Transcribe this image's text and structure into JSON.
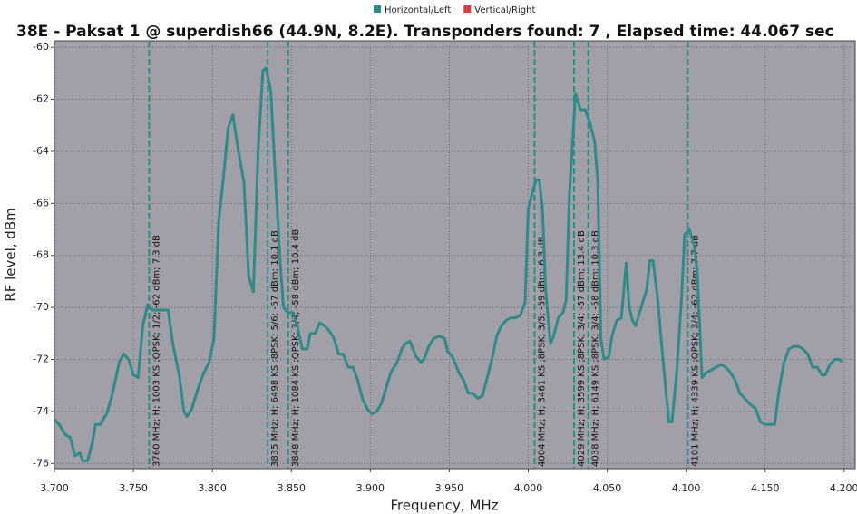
{
  "chart_data": {
    "type": "line",
    "title": "38E - Paksat 1 @ superdish66 (44.9N, 8.2E). Transponders found: 7 , Elapsed time: 44.067 sec",
    "x_label": "Frequency, MHz",
    "y_label": "RF level, dBm",
    "xlim": [
      3700,
      4207
    ],
    "ylim": [
      -76.2,
      -59.75
    ],
    "xticks": [
      {
        "value": 3700,
        "label": "3.700"
      },
      {
        "value": 3750,
        "label": "3.750"
      },
      {
        "value": 3800,
        "label": "3.800"
      },
      {
        "value": 3850,
        "label": "3.850"
      },
      {
        "value": 3900,
        "label": "3.900"
      },
      {
        "value": 3950,
        "label": "3.950"
      },
      {
        "value": 4000,
        "label": "4.000"
      },
      {
        "value": 4050,
        "label": "4.050"
      },
      {
        "value": 4100,
        "label": "4.100"
      },
      {
        "value": 4150,
        "label": "4.150"
      },
      {
        "value": 4200,
        "label": "4.200"
      }
    ],
    "yticks": [
      -60,
      -62,
      -64,
      -66,
      -68,
      -70,
      -72,
      -74,
      -76
    ],
    "grid": true,
    "legend": "top",
    "series": [
      {
        "name": "Horizontal/Left",
        "color": "#2e8b87",
        "x": [
          3700,
          3703,
          3707,
          3710,
          3713,
          3716,
          3718,
          3721,
          3724,
          3726,
          3729,
          3733,
          3736,
          3739,
          3741,
          3744,
          3747,
          3750,
          3753,
          3756,
          3759,
          3762,
          3766,
          3769,
          3772,
          3775,
          3779,
          3782,
          3784,
          3787,
          3791,
          3794,
          3798,
          3801,
          3804,
          3807,
          3810,
          3813,
          3816,
          3820,
          3823,
          3826,
          3829,
          3832,
          3834,
          3837,
          3840,
          3843,
          3845,
          3848,
          3851,
          3854,
          3857,
          3860,
          3862,
          3865,
          3868,
          3871,
          3874,
          3877,
          3880,
          3883,
          3886,
          3889,
          3892,
          3895,
          3898,
          3901,
          3904,
          3907,
          3910,
          3913,
          3917,
          3920,
          3922,
          3925,
          3929,
          3932,
          3934,
          3937,
          3940,
          3944,
          3947,
          3949,
          3952,
          3956,
          3959,
          3962,
          3965,
          3968,
          3971,
          3974,
          3977,
          3980,
          3983,
          3986,
          3989,
          3992,
          3995,
          3998,
          4000,
          4003,
          4005,
          4007,
          4009,
          4011,
          4014,
          4016,
          4019,
          4022,
          4024,
          4026,
          4029,
          4030,
          4033,
          4036,
          4039,
          4042,
          4044,
          4046,
          4048,
          4051,
          4053,
          4056,
          4059,
          4062,
          4064,
          4066,
          4068,
          4071,
          4075,
          4077,
          4079,
          4082,
          4085,
          4089,
          4091,
          4094,
          4097,
          4099,
          4102,
          4105,
          4107,
          4110,
          4113,
          4116,
          4119,
          4122,
          4125,
          4128,
          4131,
          4134,
          4137,
          4140,
          4144,
          4147,
          4150,
          4156,
          4159,
          4162,
          4165,
          4168,
          4171,
          4174,
          4177,
          4180,
          4183,
          4186,
          4188,
          4191,
          4194,
          4197,
          4199
        ],
        "values": [
          -74.3,
          -74.5,
          -74.9,
          -75.0,
          -75.7,
          -75.6,
          -75.9,
          -75.9,
          -75.2,
          -74.5,
          -74.5,
          -74.1,
          -73.5,
          -72.7,
          -72.1,
          -71.8,
          -72.0,
          -72.6,
          -72.7,
          -70.7,
          -69.9,
          -70.1,
          -70.1,
          -70.1,
          -70.1,
          -71.4,
          -72.6,
          -74.0,
          -74.2,
          -73.9,
          -73.1,
          -72.6,
          -72.1,
          -71.2,
          -66.7,
          -65.0,
          -63.1,
          -62.6,
          -63.8,
          -65.2,
          -68.8,
          -69.4,
          -63.9,
          -60.9,
          -60.8,
          -61.7,
          -65.1,
          -68.3,
          -70.0,
          -70.2,
          -70.2,
          -70.8,
          -71.6,
          -71.6,
          -71.0,
          -71.0,
          -70.6,
          -70.7,
          -70.9,
          -71.2,
          -71.8,
          -71.8,
          -72.3,
          -72.3,
          -72.8,
          -73.5,
          -73.9,
          -74.1,
          -74.0,
          -73.7,
          -73.1,
          -72.5,
          -72.1,
          -71.6,
          -71.4,
          -71.3,
          -71.9,
          -72.1,
          -72.0,
          -71.5,
          -71.2,
          -71.1,
          -71.2,
          -71.7,
          -71.9,
          -72.5,
          -72.8,
          -73.3,
          -73.3,
          -73.5,
          -73.4,
          -72.7,
          -72.0,
          -71.1,
          -70.7,
          -70.5,
          -70.4,
          -70.4,
          -70.3,
          -69.8,
          -66.2,
          -65.5,
          -65.1,
          -65.1,
          -66.2,
          -69.3,
          -71.4,
          -71.1,
          -70.4,
          -70.2,
          -69.7,
          -65.7,
          -62.7,
          -61.8,
          -62.4,
          -62.4,
          -62.9,
          -63.6,
          -65.1,
          -71.2,
          -72.0,
          -71.9,
          -71.1,
          -70.5,
          -70.4,
          -68.3,
          -70.0,
          -70.5,
          -70.7,
          -70.1,
          -69.3,
          -68.2,
          -68.2,
          -69.7,
          -71.8,
          -74.4,
          -74.4,
          -72.5,
          -69.7,
          -67.2,
          -67.0,
          -67.6,
          -68.6,
          -72.7,
          -72.5,
          -72.4,
          -72.3,
          -72.2,
          -72.3,
          -72.5,
          -72.8,
          -73.3,
          -73.5,
          -73.7,
          -73.9,
          -74.4,
          -74.5,
          -74.5,
          -73.1,
          -72.1,
          -71.6,
          -71.5,
          -71.5,
          -71.6,
          -71.8,
          -72.3,
          -72.3,
          -72.6,
          -72.6,
          -72.2,
          -72.0,
          -72.0,
          -72.1
        ]
      },
      {
        "name": "Vertical/Right",
        "color": "#e8393a"
      }
    ],
    "markers": [
      {
        "x": 3760,
        "label": "3760 MHz; H; 1003 KS ;QPSK; 1/2; -62 dBm; 7.3 dB"
      },
      {
        "x": 3835,
        "label": "3835 MHz; H; 6498 KS ;8PSK; 5/6; -57 dBm; 10.1 dB"
      },
      {
        "x": 3848,
        "label": "3848 MHz; H; 1084 KS ;QPSK; 3/4; -58 dBm; 10.4 dB"
      },
      {
        "x": 4004,
        "label": "4004 MHz; H; 3461 KS ;8PSK; 3/5; -59 dBm; 6.3 dB"
      },
      {
        "x": 4029,
        "label": "4029 MHz; H; 3599 KS ;8PSK; 3/4; -57 dBm; 13.4 dB"
      },
      {
        "x": 4038,
        "label": "4038 MHz; H; 6149 KS ;8PSK; 3/4; -58 dBm; 10.3 dB"
      },
      {
        "x": 4101,
        "label": "4101 MHz; H; 4339 KS ;QPSK; 3/4; -62 dBm; 7.7 dB"
      }
    ]
  }
}
